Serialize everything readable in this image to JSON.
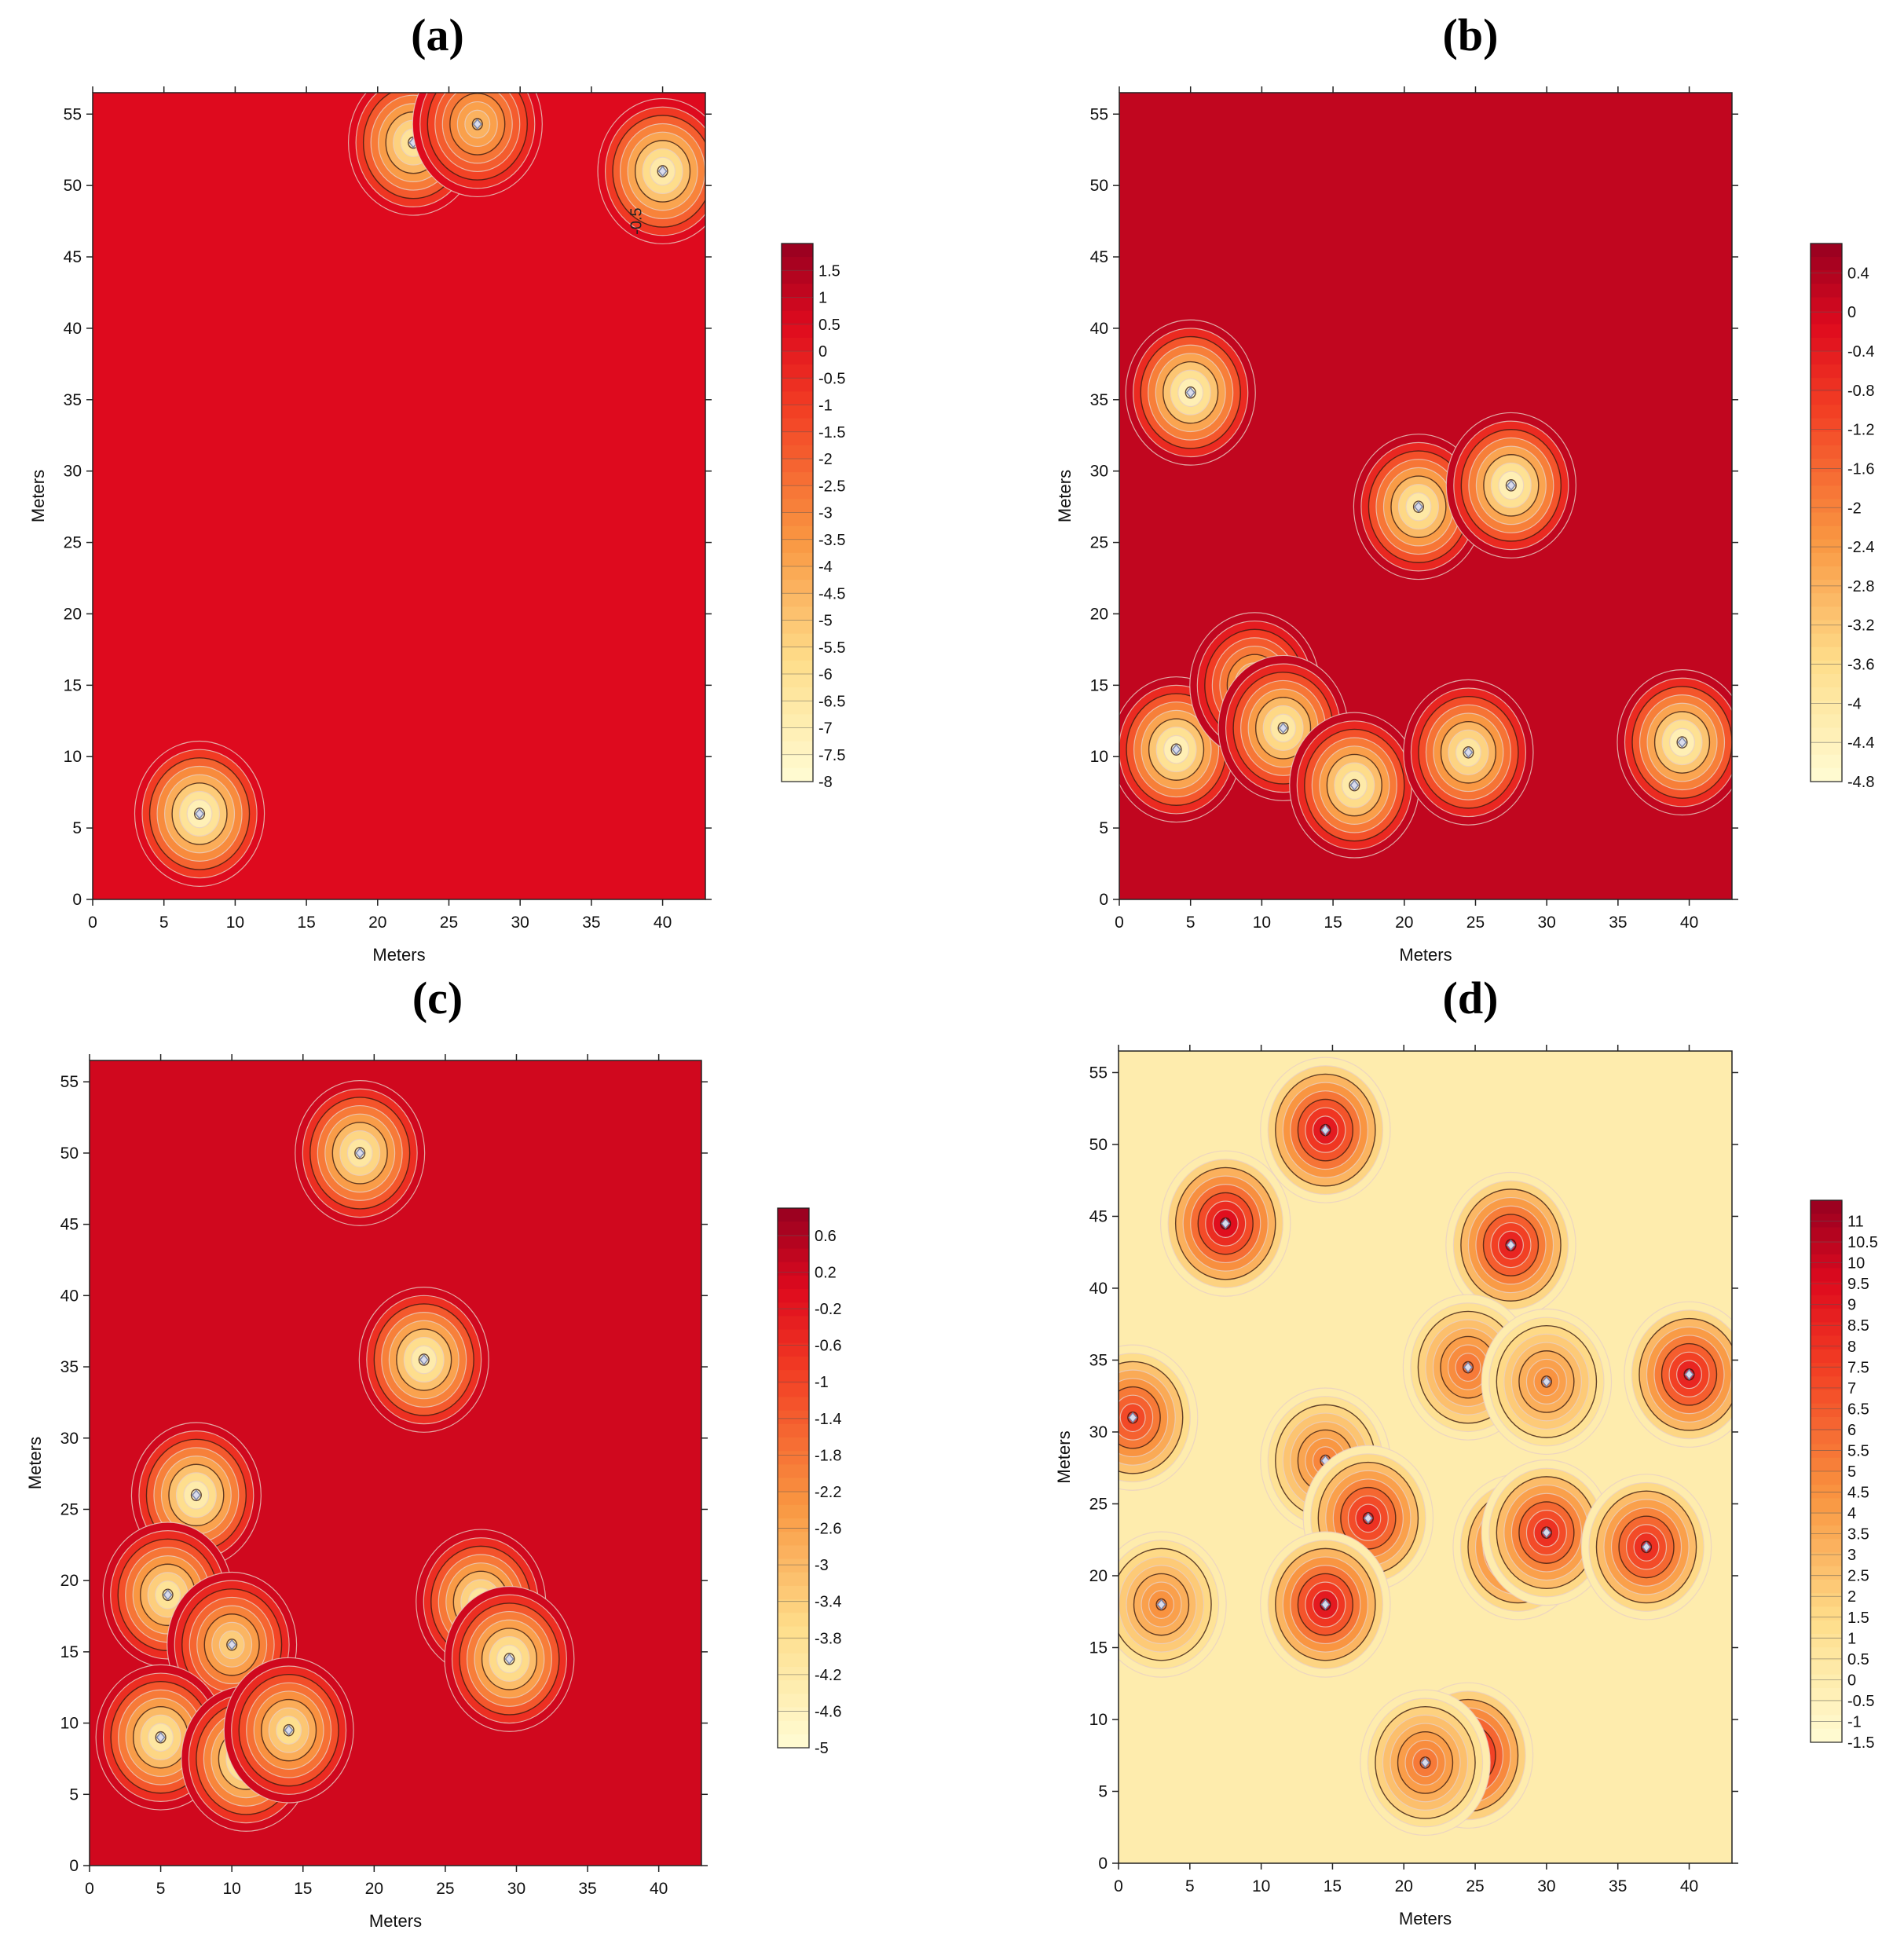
{
  "chart_data": [
    {
      "id": "a",
      "type": "heatmap",
      "title": "(a)",
      "xlabel": "Meters",
      "ylabel": "Meters",
      "xlim": [
        0,
        43
      ],
      "ylim": [
        0,
        56.5
      ],
      "xticks": [
        0,
        5,
        10,
        15,
        20,
        25,
        30,
        35,
        40
      ],
      "yticks": [
        0,
        5,
        10,
        15,
        20,
        25,
        30,
        35,
        40,
        45,
        50,
        55
      ],
      "colorbar_ticks": [
        1.5,
        1,
        0.5,
        0,
        -0.5,
        -1,
        -1.5,
        -2,
        -2.5,
        -3,
        -3.5,
        -4,
        -4.5,
        -5,
        -5.5,
        -6,
        -6.5,
        -7,
        -7.5,
        -8
      ],
      "colorbar_range": [
        -8,
        2
      ],
      "annotations": [
        {
          "text": "-0.5",
          "x": 38.5,
          "y": 47.5
        }
      ],
      "anomalies": [
        {
          "x": 7.5,
          "y": 6,
          "value": -8
        },
        {
          "x": 22.5,
          "y": 53,
          "value": -7
        },
        {
          "x": 27,
          "y": 54.3,
          "value": -5
        },
        {
          "x": 40,
          "y": 51,
          "value": -7.5
        }
      ]
    },
    {
      "id": "b",
      "type": "heatmap",
      "title": "(b)",
      "xlabel": "Meters",
      "ylabel": "Meters",
      "xlim": [
        0,
        43
      ],
      "ylim": [
        0,
        56.5
      ],
      "xticks": [
        0,
        5,
        10,
        15,
        20,
        25,
        30,
        35,
        40
      ],
      "yticks": [
        0,
        5,
        10,
        15,
        20,
        25,
        30,
        35,
        40,
        45,
        50,
        55
      ],
      "colorbar_ticks": [
        0.4,
        0,
        -0.4,
        -0.8,
        -1.2,
        -1.6,
        -2,
        -2.4,
        -2.8,
        -3.2,
        -3.6,
        -4,
        -4.4,
        -4.8
      ],
      "colorbar_range": [
        -4.8,
        0.7
      ],
      "anomalies": [
        {
          "x": 5,
          "y": 35.5,
          "value": -4.8
        },
        {
          "x": 21,
          "y": 27.5,
          "value": -4.5
        },
        {
          "x": 27.5,
          "y": 29,
          "value": -4.8
        },
        {
          "x": 4,
          "y": 10.5,
          "value": -4.8
        },
        {
          "x": 9.5,
          "y": 15,
          "value": -3.5
        },
        {
          "x": 11.5,
          "y": 12,
          "value": -4.5
        },
        {
          "x": 16.5,
          "y": 8,
          "value": -4.6
        },
        {
          "x": 24.5,
          "y": 10.3,
          "value": -4.4
        },
        {
          "x": 39.5,
          "y": 11,
          "value": -4.8
        }
      ]
    },
    {
      "id": "c",
      "type": "heatmap",
      "title": "(c)",
      "xlabel": "Meters",
      "ylabel": "Meters",
      "xlim": [
        0,
        43
      ],
      "ylim": [
        0,
        56.5
      ],
      "xticks": [
        0,
        5,
        10,
        15,
        20,
        25,
        30,
        35,
        40
      ],
      "yticks": [
        0,
        5,
        10,
        15,
        20,
        25,
        30,
        35,
        40,
        45,
        50,
        55
      ],
      "colorbar_ticks": [
        0.6,
        0.2,
        -0.2,
        -0.6,
        -1,
        -1.4,
        -1.8,
        -2.2,
        -2.6,
        -3,
        -3.4,
        -3.8,
        -4.2,
        -4.6,
        -5
      ],
      "colorbar_range": [
        -5,
        0.9
      ],
      "anomalies": [
        {
          "x": 19,
          "y": 50,
          "value": -4.6
        },
        {
          "x": 23.5,
          "y": 35.5,
          "value": -4.8
        },
        {
          "x": 7.5,
          "y": 26,
          "value": -4.8
        },
        {
          "x": 5.5,
          "y": 19,
          "value": -4.4
        },
        {
          "x": 10,
          "y": 15.5,
          "value": -3.8
        },
        {
          "x": 5,
          "y": 9,
          "value": -4.6
        },
        {
          "x": 11,
          "y": 7.5,
          "value": -5
        },
        {
          "x": 14,
          "y": 9.5,
          "value": -4.2
        },
        {
          "x": 27.5,
          "y": 18.5,
          "value": -4.5
        },
        {
          "x": 29.5,
          "y": 14.5,
          "value": -4.7
        }
      ]
    },
    {
      "id": "d",
      "type": "heatmap",
      "title": "(d)",
      "xlabel": "Meters",
      "ylabel": "Meters",
      "xlim": [
        0,
        43
      ],
      "ylim": [
        0,
        56.5
      ],
      "xticks": [
        0,
        5,
        10,
        15,
        20,
        25,
        30,
        35,
        40
      ],
      "yticks": [
        0,
        5,
        10,
        15,
        20,
        25,
        30,
        35,
        40,
        45,
        50,
        55
      ],
      "colorbar_ticks": [
        11,
        10.5,
        10,
        9.5,
        9,
        8.5,
        8,
        7.5,
        7,
        6.5,
        6,
        5.5,
        5,
        4.5,
        4,
        3.5,
        3,
        2.5,
        2,
        1.5,
        1,
        0.5,
        0,
        -0.5,
        -1,
        -1.5
      ],
      "colorbar_range": [
        -1.5,
        11.5
      ],
      "anomalies": [
        {
          "x": 14.5,
          "y": 51,
          "value": 10
        },
        {
          "x": 7.5,
          "y": 44.5,
          "value": 10.5
        },
        {
          "x": 1,
          "y": 31,
          "value": 8
        },
        {
          "x": 27.5,
          "y": 43,
          "value": 9.5
        },
        {
          "x": 24.5,
          "y": 34.5,
          "value": 6
        },
        {
          "x": 30,
          "y": 33.5,
          "value": 5
        },
        {
          "x": 40,
          "y": 34,
          "value": 9.5
        },
        {
          "x": 14.5,
          "y": 28,
          "value": 5.5
        },
        {
          "x": 17.5,
          "y": 24,
          "value": 9
        },
        {
          "x": 14.5,
          "y": 18,
          "value": 10
        },
        {
          "x": 28,
          "y": 22,
          "value": 9
        },
        {
          "x": 30,
          "y": 23,
          "value": 9
        },
        {
          "x": 37,
          "y": 22,
          "value": 9
        },
        {
          "x": 3,
          "y": 18,
          "value": 5
        },
        {
          "x": 24.5,
          "y": 7.5,
          "value": 11
        },
        {
          "x": 21.5,
          "y": 7,
          "value": 6
        }
      ]
    }
  ]
}
